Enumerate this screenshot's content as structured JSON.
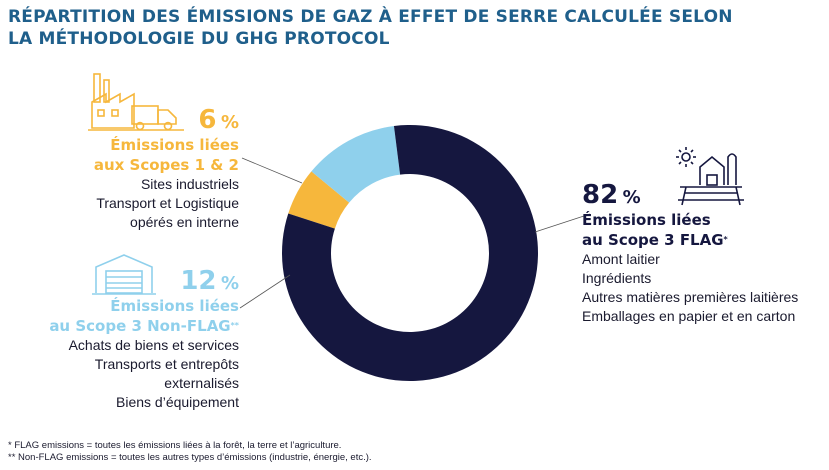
{
  "title": {
    "line1": "RÉPARTITION DES ÉMISSIONS DE GAZ À EFFET DE SERRE CALCULÉE SELON",
    "line2": "LA MÉTHODOLOGIE DU GHG PROTOCOL"
  },
  "colors": {
    "title": "#1f5f8b",
    "scope12": "#f6b73c",
    "scope3_nonflag": "#8fd0ec",
    "scope3_flag": "#15173f"
  },
  "chart_data": {
    "type": "pie",
    "style": "donut",
    "categories": [
      "Émissions liées aux Scopes 1 & 2",
      "Émissions liées au Scope 3 Non-FLAG",
      "Émissions liées au Scope 3 FLAG"
    ],
    "values": [
      6,
      12,
      82
    ],
    "unit": "%",
    "colors": [
      "#f6b73c",
      "#8fd0ec",
      "#15173f"
    ]
  },
  "scope12": {
    "value": "6",
    "unit": "%",
    "heading_line1": "Émissions liées",
    "heading_line2": "aux Scopes 1 & 2",
    "details": [
      "Sites industriels",
      "Transport et Logistique",
      "opérés en interne"
    ],
    "icon": "factory-truck-icon"
  },
  "scope3_nonflag": {
    "value": "12",
    "unit": "%",
    "heading_line1": "Émissions liées",
    "heading_line2": "au Scope 3 Non-FLAG",
    "mark": "**",
    "details": [
      "Achats de biens et services",
      "Transports et entrepôts",
      "externalisés",
      "Biens d’équipement"
    ],
    "icon": "warehouse-icon"
  },
  "scope3_flag": {
    "value": "82",
    "unit": "%",
    "heading_line1": "Émissions liées",
    "heading_line2": "au Scope 3 FLAG",
    "mark": "*",
    "details": [
      "Amont laitier",
      "Ingrédients",
      "Autres matières premières laitières",
      "Emballages en papier et en carton"
    ],
    "icon": "farm-icon"
  },
  "footnotes": {
    "flag": "* FLAG emissions = toutes les émissions liées à la forêt, la terre et l’agriculture.",
    "nonflag": "** Non-FLAG emissions = toutes les autres types d’émissions (industrie, énergie, etc.)."
  }
}
